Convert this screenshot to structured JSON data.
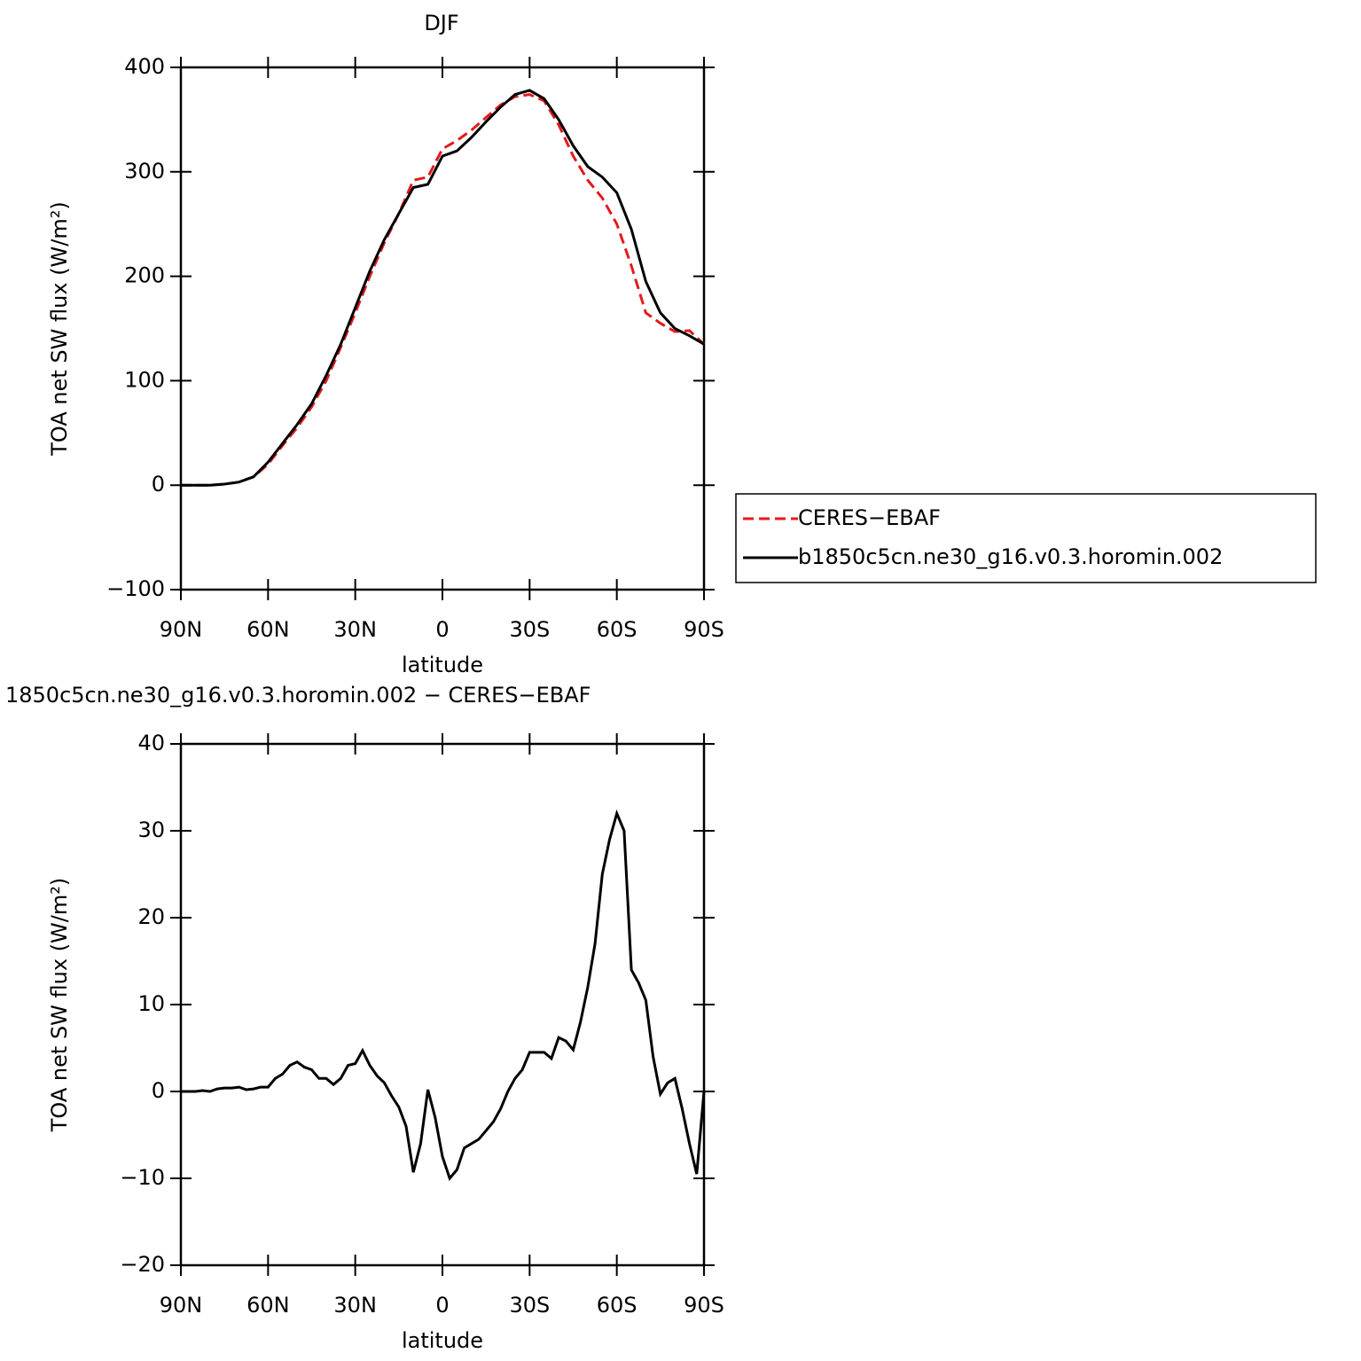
{
  "chart_data": [
    {
      "type": "line",
      "title": "DJF",
      "xlabel": "latitude",
      "ylabel": "TOA net SW flux (W/m²)",
      "x": [
        90,
        85,
        80,
        75,
        70,
        65,
        60,
        55,
        50,
        45,
        40,
        35,
        30,
        25,
        20,
        15,
        10,
        5,
        0,
        -5,
        -10,
        -15,
        -20,
        -25,
        -30,
        -35,
        -40,
        -45,
        -50,
        -55,
        -60,
        -65,
        -70,
        -75,
        -80,
        -85,
        -90
      ],
      "series": [
        {
          "name": "CERES−EBAF",
          "color": "#e41a1c",
          "style": "dashed",
          "values": [
            0,
            0,
            0,
            1,
            3,
            8,
            20,
            38,
            55,
            75,
            100,
            132,
            165,
            200,
            232,
            260,
            292,
            295,
            322,
            330,
            340,
            352,
            364,
            372,
            374,
            368,
            345,
            315,
            292,
            275,
            250,
            210,
            165,
            155,
            147,
            148,
            135
          ]
        },
        {
          "name": "b1850c5cn.ne30_g16.v0.3.horomin.002",
          "color": "#000000",
          "style": "solid",
          "values": [
            0,
            0,
            0,
            1,
            3,
            8,
            22,
            40,
            58,
            78,
            105,
            135,
            170,
            205,
            235,
            260,
            285,
            288,
            315,
            320,
            333,
            348,
            362,
            374,
            378,
            370,
            350,
            325,
            305,
            295,
            280,
            245,
            195,
            165,
            150,
            143,
            135
          ]
        }
      ],
      "xlim": [
        90,
        -90
      ],
      "xticks": [
        {
          "value": 90,
          "label": "90N"
        },
        {
          "value": 60,
          "label": "60N"
        },
        {
          "value": 30,
          "label": "30N"
        },
        0,
        {
          "value": -30,
          "label": "30S"
        },
        {
          "value": -60,
          "label": "60S"
        },
        {
          "value": -90,
          "label": "90S"
        }
      ],
      "ylim": [
        -100,
        400
      ],
      "yticks": [
        {
          "value": -100,
          "label": "−100"
        },
        0,
        100,
        200,
        300,
        400
      ],
      "legend": "right"
    },
    {
      "type": "line",
      "title": "1850c5cn.ne30_g16.v0.3.horomin.002 − CERES−EBAF",
      "xlabel": "latitude",
      "ylabel": "TOA net SW flux (W/m²)",
      "x": [
        90,
        87.5,
        85,
        82.5,
        80,
        77.5,
        75,
        72.5,
        70,
        67.5,
        65,
        62.5,
        60,
        57.5,
        55,
        52.5,
        50,
        47.5,
        45,
        42.5,
        40,
        37.5,
        35,
        32.5,
        30,
        27.5,
        25,
        22.5,
        20,
        17.5,
        15,
        12.5,
        10,
        7.5,
        5,
        2.5,
        0,
        -2.5,
        -5,
        -7.5,
        -10,
        -12.5,
        -15,
        -17.5,
        -20,
        -22.5,
        -25,
        -27.5,
        -30,
        -32.5,
        -35,
        -37.5,
        -40,
        -42.5,
        -45,
        -47.5,
        -50,
        -52.5,
        -55,
        -57.5,
        -60,
        -62.5,
        -65,
        -67.5,
        -70,
        -72.5,
        -75,
        -77.5,
        -80,
        -82.5,
        -85,
        -87.5,
        -90
      ],
      "series": [
        {
          "name": "b1850c5cn.ne30_g16.v0.3.horomin.002 − CERES−EBAF",
          "color": "#000000",
          "style": "solid",
          "values": [
            0,
            0,
            0,
            0.1,
            0,
            0.3,
            0.4,
            0.4,
            0.5,
            0.2,
            0.3,
            0.5,
            0.5,
            1.5,
            2,
            3,
            3.4,
            2.8,
            2.5,
            1.5,
            1.5,
            0.8,
            1.5,
            3,
            3.2,
            4.7,
            3,
            1.8,
            1,
            -0.5,
            -1.8,
            -4,
            -9.3,
            -6,
            0.2,
            -3,
            -7.5,
            -10,
            -9,
            -6.5,
            -6,
            -5.5,
            -4.5,
            -3.5,
            -2,
            0,
            1.5,
            2.5,
            4.5,
            4.5,
            4.5,
            3.8,
            6.2,
            5.8,
            4.8,
            8,
            12,
            17,
            25,
            29,
            32,
            30,
            14,
            12.5,
            10.5,
            4,
            -0.3,
            1,
            1.5,
            -2,
            -6,
            -9.5,
            0
          ]
        }
      ],
      "xlim": [
        90,
        -90
      ],
      "xticks": [
        {
          "value": 90,
          "label": "90N"
        },
        {
          "value": 60,
          "label": "60N"
        },
        {
          "value": 30,
          "label": "30N"
        },
        0,
        {
          "value": -30,
          "label": "30S"
        },
        {
          "value": -60,
          "label": "60S"
        },
        {
          "value": -90,
          "label": "90S"
        }
      ],
      "ylim": [
        -20,
        40
      ],
      "yticks": [
        {
          "value": -20,
          "label": "−20"
        },
        {
          "value": -10,
          "label": "−10"
        },
        0,
        10,
        20,
        30,
        40
      ]
    }
  ]
}
